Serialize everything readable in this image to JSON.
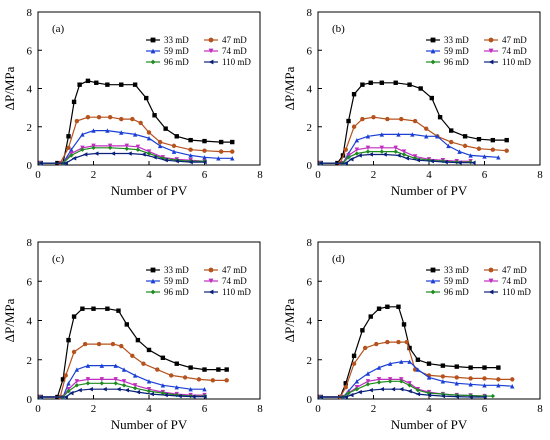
{
  "chart_data": [
    {
      "type": "line",
      "panel_label": "(a)",
      "xlabel": "Number of PV",
      "ylabel": "ΔP/MPa",
      "xlim": [
        0,
        8
      ],
      "ylim": [
        0,
        8
      ],
      "xticks": [
        "0",
        "2",
        "4",
        "6",
        "8"
      ],
      "yticks": [
        "0",
        "2",
        "4",
        "6",
        "8"
      ],
      "grid": false,
      "legend_position": "top-right",
      "series": [
        {
          "name": "33 mD",
          "color": "#000000",
          "marker": "square",
          "x": [
            0.1,
            0.7,
            0.9,
            1.1,
            1.3,
            1.5,
            1.8,
            2.1,
            2.5,
            3.0,
            3.5,
            3.9,
            4.2,
            4.6,
            5.0,
            5.5,
            6.0,
            6.6,
            7.0
          ],
          "y": [
            0.1,
            0.1,
            0.1,
            1.5,
            3.3,
            4.2,
            4.4,
            4.3,
            4.2,
            4.2,
            4.2,
            3.5,
            2.6,
            1.9,
            1.5,
            1.3,
            1.25,
            1.2,
            1.2
          ]
        },
        {
          "name": "47 mD",
          "color": "#b5521d",
          "marker": "circle",
          "x": [
            0.1,
            0.8,
            1.1,
            1.4,
            1.8,
            2.2,
            2.6,
            3.0,
            3.4,
            3.7,
            4.0,
            4.4,
            4.9,
            5.5,
            6.0,
            6.6,
            7.0
          ],
          "y": [
            0.1,
            0.1,
            0.9,
            2.3,
            2.5,
            2.5,
            2.5,
            2.4,
            2.4,
            2.2,
            1.7,
            1.2,
            1.0,
            0.8,
            0.75,
            0.7,
            0.7
          ]
        },
        {
          "name": "59 mD",
          "color": "#1a3fd6",
          "marker": "triangle-up",
          "x": [
            0.1,
            0.9,
            1.2,
            1.6,
            2.0,
            2.5,
            3.0,
            3.5,
            4.0,
            4.4,
            4.9,
            5.5,
            6.0,
            6.5,
            7.0
          ],
          "y": [
            0.1,
            0.1,
            0.8,
            1.6,
            1.8,
            1.8,
            1.7,
            1.6,
            1.4,
            1.0,
            0.7,
            0.5,
            0.4,
            0.35,
            0.35
          ]
        },
        {
          "name": "74 mD",
          "color": "#c02cc0",
          "marker": "triangle-down",
          "x": [
            0.1,
            0.9,
            1.2,
            1.6,
            2.0,
            2.6,
            3.2,
            3.6,
            4.0,
            4.5,
            5.0,
            5.5,
            6.0
          ],
          "y": [
            0.1,
            0.1,
            0.6,
            0.9,
            1.0,
            1.0,
            1.0,
            0.95,
            0.7,
            0.4,
            0.3,
            0.25,
            0.2
          ]
        },
        {
          "name": "96 mD",
          "color": "#1f8a1f",
          "marker": "diamond",
          "x": [
            0.1,
            0.9,
            1.2,
            1.6,
            2.0,
            2.6,
            3.2,
            3.6,
            4.0,
            4.5,
            5.0,
            5.5,
            6.0
          ],
          "y": [
            0.1,
            0.1,
            0.5,
            0.8,
            0.9,
            0.9,
            0.85,
            0.8,
            0.6,
            0.35,
            0.25,
            0.2,
            0.2
          ]
        },
        {
          "name": "110 mD",
          "color": "#0a1f7a",
          "marker": "triangle-left",
          "x": [
            0.1,
            1.0,
            1.3,
            1.7,
            2.1,
            2.7,
            3.3,
            3.8,
            4.2,
            4.6,
            5.0,
            5.5,
            6.0
          ],
          "y": [
            0.1,
            0.1,
            0.35,
            0.55,
            0.6,
            0.6,
            0.6,
            0.55,
            0.4,
            0.25,
            0.2,
            0.15,
            0.15
          ]
        }
      ]
    },
    {
      "type": "line",
      "panel_label": "(b)",
      "xlabel": "Number of PV",
      "ylabel": "ΔP/MPa",
      "xlim": [
        0,
        8
      ],
      "ylim": [
        0,
        8
      ],
      "xticks": [
        "0",
        "2",
        "4",
        "6",
        "8"
      ],
      "yticks": [
        "0",
        "2",
        "4",
        "6",
        "8"
      ],
      "grid": false,
      "legend_position": "top-right",
      "series": [
        {
          "name": "33 mD",
          "color": "#000000",
          "marker": "square",
          "x": [
            0.1,
            0.7,
            0.9,
            1.1,
            1.3,
            1.6,
            1.9,
            2.3,
            2.8,
            3.3,
            3.7,
            4.1,
            4.4,
            4.8,
            5.3,
            5.8,
            6.3,
            6.8
          ],
          "y": [
            0.1,
            0.1,
            0.5,
            2.3,
            3.7,
            4.2,
            4.3,
            4.3,
            4.3,
            4.2,
            4.0,
            3.5,
            2.5,
            1.8,
            1.5,
            1.35,
            1.3,
            1.3
          ]
        },
        {
          "name": "47 mD",
          "color": "#b5521d",
          "marker": "circle",
          "x": [
            0.1,
            0.8,
            1.0,
            1.3,
            1.6,
            2.0,
            2.5,
            3.0,
            3.5,
            3.9,
            4.3,
            4.8,
            5.3,
            5.8,
            6.3,
            6.8
          ],
          "y": [
            0.1,
            0.1,
            0.8,
            2.0,
            2.4,
            2.5,
            2.4,
            2.4,
            2.3,
            1.9,
            1.5,
            1.2,
            1.0,
            0.85,
            0.8,
            0.75
          ]
        },
        {
          "name": "59 mD",
          "color": "#1a3fd6",
          "marker": "triangle-up",
          "x": [
            0.1,
            0.9,
            1.1,
            1.4,
            1.8,
            2.3,
            2.9,
            3.4,
            3.9,
            4.3,
            4.7,
            5.1,
            5.5,
            6.0,
            6.5
          ],
          "y": [
            0.1,
            0.1,
            0.6,
            1.3,
            1.5,
            1.6,
            1.6,
            1.6,
            1.5,
            1.5,
            1.0,
            0.7,
            0.5,
            0.45,
            0.4
          ]
        },
        {
          "name": "74 mD",
          "color": "#c02cc0",
          "marker": "triangle-down",
          "x": [
            0.1,
            0.9,
            1.1,
            1.4,
            1.8,
            2.3,
            2.8,
            3.1,
            3.5,
            4.0,
            4.5,
            5.0,
            5.5
          ],
          "y": [
            0.1,
            0.1,
            0.5,
            0.8,
            0.9,
            0.9,
            0.9,
            0.7,
            0.45,
            0.3,
            0.25,
            0.2,
            0.2
          ]
        },
        {
          "name": "96 mD",
          "color": "#1f8a1f",
          "marker": "diamond",
          "x": [
            0.1,
            0.9,
            1.1,
            1.4,
            1.8,
            2.3,
            2.8,
            3.1,
            3.5,
            4.0,
            4.5,
            5.0,
            5.5
          ],
          "y": [
            0.1,
            0.1,
            0.4,
            0.6,
            0.7,
            0.7,
            0.7,
            0.55,
            0.35,
            0.25,
            0.2,
            0.15,
            0.15
          ]
        },
        {
          "name": "110 mD",
          "color": "#0a1f7a",
          "marker": "triangle-left",
          "x": [
            0.1,
            1.0,
            1.2,
            1.5,
            1.9,
            2.4,
            2.9,
            3.2,
            3.6,
            4.1,
            4.6,
            5.1,
            5.6
          ],
          "y": [
            0.1,
            0.1,
            0.3,
            0.5,
            0.55,
            0.55,
            0.5,
            0.35,
            0.25,
            0.2,
            0.15,
            0.12,
            0.12
          ]
        }
      ]
    },
    {
      "type": "line",
      "panel_label": "(c)",
      "xlabel": "Number of PV",
      "ylabel": "ΔP/MPa",
      "xlim": [
        0,
        8
      ],
      "ylim": [
        0,
        8
      ],
      "xticks": [
        "0",
        "2",
        "4",
        "6",
        "8"
      ],
      "yticks": [
        "0",
        "2",
        "4",
        "6",
        "8"
      ],
      "grid": false,
      "legend_position": "top-right",
      "series": [
        {
          "name": "33 mD",
          "color": "#000000",
          "marker": "square",
          "x": [
            0.1,
            0.7,
            0.9,
            1.1,
            1.3,
            1.6,
            2.0,
            2.5,
            2.9,
            3.2,
            3.6,
            4.0,
            4.5,
            5.0,
            5.5,
            6.0,
            6.5,
            6.8
          ],
          "y": [
            0.1,
            0.1,
            1.0,
            3.0,
            4.2,
            4.6,
            4.6,
            4.6,
            4.5,
            3.8,
            3.0,
            2.5,
            2.1,
            1.8,
            1.6,
            1.5,
            1.5,
            1.5
          ]
        },
        {
          "name": "47 mD",
          "color": "#b5521d",
          "marker": "circle",
          "x": [
            0.1,
            0.8,
            1.0,
            1.3,
            1.7,
            2.2,
            2.7,
            3.0,
            3.4,
            3.8,
            4.3,
            4.8,
            5.3,
            5.8,
            6.3,
            6.8
          ],
          "y": [
            0.1,
            0.1,
            1.2,
            2.4,
            2.8,
            2.8,
            2.8,
            2.7,
            2.2,
            1.8,
            1.5,
            1.2,
            1.1,
            1.0,
            0.95,
            0.95
          ]
        },
        {
          "name": "59 mD",
          "color": "#1a3fd6",
          "marker": "triangle-up",
          "x": [
            0.1,
            0.9,
            1.1,
            1.4,
            1.8,
            2.3,
            2.8,
            3.1,
            3.5,
            4.0,
            4.5,
            5.0,
            5.5,
            6.0
          ],
          "y": [
            0.1,
            0.1,
            0.8,
            1.5,
            1.7,
            1.7,
            1.7,
            1.5,
            1.2,
            0.9,
            0.7,
            0.6,
            0.5,
            0.5
          ]
        },
        {
          "name": "74 mD",
          "color": "#c02cc0",
          "marker": "triangle-down",
          "x": [
            0.1,
            0.9,
            1.1,
            1.4,
            1.8,
            2.3,
            2.8,
            3.1,
            3.5,
            4.0,
            4.5,
            5.0,
            5.5,
            6.0
          ],
          "y": [
            0.1,
            0.1,
            0.5,
            0.9,
            1.0,
            1.0,
            1.0,
            0.9,
            0.7,
            0.5,
            0.35,
            0.25,
            0.2,
            0.2
          ]
        },
        {
          "name": "96 mD",
          "color": "#1f8a1f",
          "marker": "diamond",
          "x": [
            0.1,
            0.9,
            1.1,
            1.4,
            1.8,
            2.3,
            2.8,
            3.1,
            3.5,
            4.0,
            4.5,
            5.0,
            5.5,
            6.0
          ],
          "y": [
            0.1,
            0.1,
            0.4,
            0.7,
            0.8,
            0.8,
            0.8,
            0.7,
            0.55,
            0.4,
            0.3,
            0.2,
            0.15,
            0.15
          ]
        },
        {
          "name": "110 mD",
          "color": "#0a1f7a",
          "marker": "triangle-left",
          "x": [
            0.1,
            1.0,
            1.2,
            1.5,
            1.9,
            2.4,
            2.9,
            3.2,
            3.6,
            4.1,
            4.6,
            5.1,
            5.6,
            6.0
          ],
          "y": [
            0.1,
            0.1,
            0.3,
            0.45,
            0.5,
            0.5,
            0.5,
            0.45,
            0.35,
            0.25,
            0.2,
            0.15,
            0.12,
            0.12
          ]
        }
      ]
    },
    {
      "type": "line",
      "panel_label": "(d)",
      "xlabel": "Number of PV",
      "ylabel": "ΔP/MPa",
      "xlim": [
        0,
        8
      ],
      "ylim": [
        0,
        8
      ],
      "xticks": [
        "0",
        "2",
        "4",
        "6",
        "8"
      ],
      "yticks": [
        "0",
        "2",
        "4",
        "6",
        "8"
      ],
      "grid": false,
      "legend_position": "top-right",
      "series": [
        {
          "name": "33 mD",
          "color": "#000000",
          "marker": "square",
          "x": [
            0.1,
            0.8,
            1.0,
            1.3,
            1.6,
            1.9,
            2.2,
            2.5,
            2.9,
            3.1,
            3.3,
            3.6,
            4.0,
            4.5,
            5.0,
            5.5,
            6.0,
            6.5
          ],
          "y": [
            0.1,
            0.1,
            0.8,
            2.2,
            3.5,
            4.2,
            4.6,
            4.7,
            4.7,
            3.8,
            2.6,
            2.0,
            1.8,
            1.7,
            1.65,
            1.6,
            1.6,
            1.6
          ]
        },
        {
          "name": "47 mD",
          "color": "#b5521d",
          "marker": "circle",
          "x": [
            0.1,
            0.8,
            1.0,
            1.3,
            1.7,
            2.1,
            2.5,
            2.9,
            3.2,
            3.5,
            4.0,
            4.5,
            5.0,
            5.5,
            6.0,
            6.5,
            7.0
          ],
          "y": [
            0.1,
            0.1,
            0.6,
            1.8,
            2.6,
            2.8,
            2.9,
            2.9,
            2.9,
            1.5,
            1.2,
            1.15,
            1.1,
            1.05,
            1.05,
            1.0,
            1.0
          ]
        },
        {
          "name": "59 mD",
          "color": "#1a3fd6",
          "marker": "triangle-up",
          "x": [
            0.1,
            0.9,
            1.1,
            1.4,
            1.8,
            2.2,
            2.6,
            3.0,
            3.3,
            3.6,
            4.0,
            4.5,
            5.0,
            5.5,
            6.0,
            6.5,
            7.0
          ],
          "y": [
            0.1,
            0.1,
            0.4,
            0.9,
            1.3,
            1.6,
            1.8,
            1.9,
            1.9,
            1.5,
            1.1,
            0.9,
            0.8,
            0.75,
            0.7,
            0.7,
            0.65
          ]
        },
        {
          "name": "74 mD",
          "color": "#c02cc0",
          "marker": "triangle-down",
          "x": [
            0.1,
            0.9,
            1.1,
            1.4,
            1.8,
            2.2,
            2.6,
            3.0,
            3.3,
            3.6,
            4.0,
            4.5,
            5.0,
            5.5,
            6.0
          ],
          "y": [
            0.1,
            0.1,
            0.3,
            0.6,
            0.9,
            1.0,
            1.0,
            1.0,
            0.8,
            0.5,
            0.35,
            0.25,
            0.2,
            0.18,
            0.15
          ]
        },
        {
          "name": "96 mD",
          "color": "#1f8a1f",
          "marker": "diamond",
          "x": [
            0.1,
            0.9,
            1.1,
            1.4,
            1.8,
            2.2,
            2.6,
            3.0,
            3.3,
            3.6,
            4.0,
            4.5,
            5.0,
            5.5,
            6.0,
            6.3
          ],
          "y": [
            0.1,
            0.1,
            0.3,
            0.5,
            0.75,
            0.85,
            0.9,
            0.9,
            0.7,
            0.45,
            0.3,
            0.25,
            0.2,
            0.18,
            0.15,
            0.15
          ]
        },
        {
          "name": "110 mD",
          "color": "#0a1f7a",
          "marker": "triangle-left",
          "x": [
            0.1,
            1.0,
            1.2,
            1.5,
            1.9,
            2.3,
            2.7,
            3.0,
            3.3,
            3.6,
            4.0,
            4.5,
            5.0,
            5.5,
            6.0
          ],
          "y": [
            0.1,
            0.1,
            0.2,
            0.35,
            0.45,
            0.5,
            0.5,
            0.5,
            0.4,
            0.25,
            0.2,
            0.15,
            0.12,
            0.1,
            0.1
          ]
        }
      ]
    }
  ]
}
